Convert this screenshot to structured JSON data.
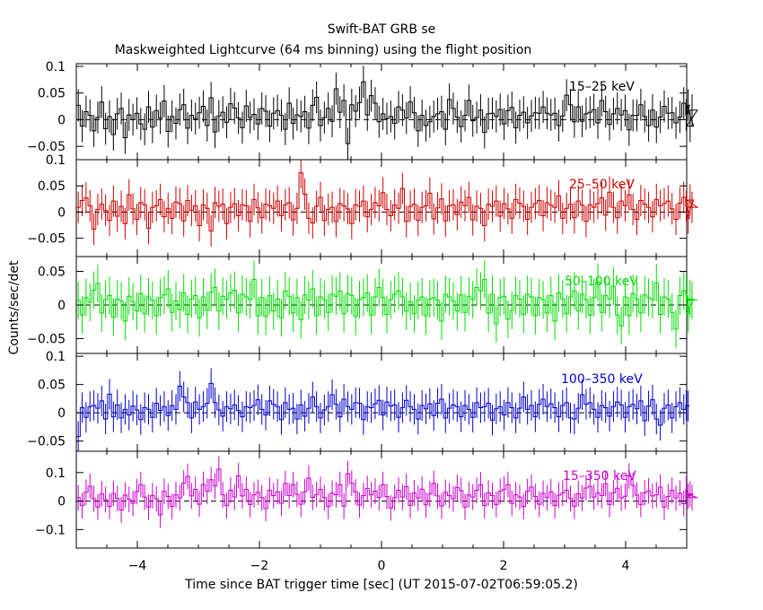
{
  "chart_data": {
    "type": "line",
    "title": "Swift-BAT GRB se",
    "subtitle": "Maskweighted Lightcurve (64 ms binning) using the flight position",
    "xlabel": "Time since BAT trigger time [sec] (UT 2015-07-02T06:59:05.2)",
    "ylabel": "Counts/sec/det",
    "xlim": [
      -5,
      5
    ],
    "xticks": [
      -4,
      -2,
      0,
      2,
      4
    ],
    "xtick_labels": [
      "−4",
      "−2",
      "0",
      "2",
      "4"
    ],
    "bin_width": 0.064,
    "panels": [
      {
        "label": "15–25 keV",
        "color": "#000000",
        "ylim": [
          -0.075,
          0.105
        ],
        "yticks": [
          -0.05,
          0,
          0.05,
          0.1
        ],
        "ytick_labels": [
          "−0.05",
          "0",
          "0.05",
          "0.1"
        ],
        "error": 0.03,
        "values": [
          0.027,
          -0.012,
          0.015,
          0.008,
          -0.021,
          0.004,
          0.033,
          -0.017,
          0.006,
          -0.028,
          0.011,
          0.021,
          -0.034,
          0.009,
          0.0,
          0.012,
          -0.008,
          -0.018,
          0.024,
          -0.014,
          0.017,
          0.003,
          0.035,
          -0.022,
          0.006,
          -0.007,
          0.019,
          0.028,
          -0.016,
          0.008,
          0.002,
          0.013,
          0.025,
          -0.011,
          0.041,
          -0.023,
          0.007,
          0.014,
          -0.005,
          0.03,
          0.022,
          0.003,
          -0.015,
          0.026,
          0.004,
          0.01,
          -0.008,
          0.021,
          0.016,
          -0.012,
          0.012,
          0.017,
          0.008,
          -0.018,
          0.031,
          -0.007,
          0.009,
          0.006,
          0.015,
          -0.016,
          0.027,
          0.042,
          -0.011,
          0.004,
          0.021,
          -0.003,
          0.058,
          0.014,
          0.036,
          -0.045,
          0.028,
          0.016,
          0.032,
          0.071,
          0.009,
          0.045,
          0.031,
          -0.004,
          0.011,
          0.002,
          0.006,
          -0.007,
          0.024,
          0.018,
          0.003,
          0.033,
          0.013,
          -0.021,
          0.008,
          -0.011,
          -0.004,
          0.006,
          0.011,
          0.015,
          -0.018,
          0.038,
          0.021,
          0.005,
          -0.013,
          0.008,
          0.036,
          -0.002,
          0.004,
          0.018,
          -0.024,
          0.011,
          0.012,
          0.006,
          0.019,
          -0.008,
          0.017,
          0.023,
          -0.015,
          0.008,
          0.014,
          -0.006,
          0.007,
          0.013,
          0.012,
          0.024,
          0.012,
          0.009,
          0.012,
          -0.011,
          0.007,
          0.046,
          0.028,
          -0.004,
          0.024,
          -0.003,
          0.011,
          0.014,
          0.019,
          -0.006,
          0.036,
          0.015,
          -0.009,
          0.011,
          0.021,
          0.009,
          0.017,
          -0.019,
          0.008,
          0.008,
          0.028,
          0.006,
          -0.011,
          0.018,
          -0.014,
          0.005,
          0.025,
          0.012,
          0.013,
          -0.006,
          0.005,
          0.031,
          0.009,
          0.027,
          -0.012,
          0.018
        ]
      },
      {
        "label": "25–50 keV",
        "color": "#cc0000",
        "ylim": [
          -0.085,
          0.1
        ],
        "yticks": [
          -0.05,
          0,
          0.05,
          0.1
        ],
        "ytick_labels": [
          "−0.05",
          "0",
          "0.05",
          "0.1"
        ],
        "error": 0.03,
        "values": [
          0.009,
          0.022,
          0.027,
          0.012,
          -0.033,
          0.005,
          0.015,
          0.003,
          -0.016,
          0.021,
          -0.008,
          0.011,
          -0.022,
          0.033,
          0.006,
          -0.014,
          0.018,
          0.014,
          -0.031,
          0.009,
          0.012,
          0.024,
          -0.009,
          0.007,
          -0.012,
          0.019,
          0.016,
          -0.017,
          0.022,
          0.003,
          0.012,
          -0.026,
          0.014,
          0.007,
          -0.036,
          0.018,
          0.011,
          0.015,
          -0.022,
          0.009,
          0.016,
          -0.007,
          0.014,
          0.012,
          -0.018,
          0.024,
          0.008,
          -0.011,
          0.015,
          0.012,
          0.007,
          0.021,
          -0.007,
          0.014,
          0.018,
          -0.015,
          0.007,
          0.075,
          0.034,
          -0.012,
          -0.021,
          0.011,
          0.028,
          -0.016,
          0.005,
          0.009,
          -0.018,
          0.016,
          0.012,
          0.006,
          -0.022,
          0.014,
          0.011,
          0.021,
          -0.009,
          0.005,
          0.018,
          0.012,
          0.037,
          0.005,
          -0.007,
          0.014,
          0.007,
          0.045,
          -0.018,
          0.011,
          0.015,
          -0.016,
          0.009,
          0.012,
          0.036,
          -0.013,
          0.008,
          0.025,
          -0.017,
          0.012,
          0.014,
          -0.005,
          0.019,
          0.012,
          0.028,
          -0.015,
          0.011,
          0.007,
          -0.026,
          0.015,
          0.011,
          0.021,
          -0.008,
          0.016,
          0.006,
          -0.012,
          0.024,
          0.017,
          0.011,
          -0.014,
          0.009,
          0.016,
          0.022,
          -0.007,
          0.018,
          0.013,
          0.009,
          0.031,
          -0.012,
          0.007,
          0.015,
          -0.011,
          0.021,
          0.013,
          -0.018,
          0.014,
          0.009,
          0.016,
          0.027,
          -0.006,
          0.038,
          0.009,
          -0.011,
          0.021,
          0.012,
          0.033,
          0.005,
          -0.014,
          0.022,
          0.015,
          0.009,
          -0.009,
          0.024,
          0.012,
          0.016,
          0.021,
          0.006,
          -0.014,
          0.017,
          0.028,
          0.011,
          -0.012,
          0.023,
          0.009
        ]
      },
      {
        "label": "50–100 keV",
        "color": "#00dd00",
        "ylim": [
          -0.072,
          0.072
        ],
        "yticks": [
          -0.05,
          0,
          0.05
        ],
        "ytick_labels": [
          "−0.05",
          "0",
          "0.05"
        ],
        "error": 0.028,
        "values": [
          0.007,
          -0.015,
          0.011,
          0.004,
          0.022,
          0.032,
          -0.012,
          0.008,
          0.014,
          -0.018,
          0.009,
          0.006,
          -0.024,
          0.013,
          0.005,
          -0.009,
          0.017,
          -0.013,
          0.012,
          0.007,
          -0.016,
          0.011,
          0.015,
          0.024,
          -0.011,
          0.006,
          -0.007,
          0.018,
          -0.014,
          0.009,
          0.014,
          -0.019,
          0.012,
          -0.008,
          0.019,
          0.026,
          -0.009,
          0.013,
          0.008,
          0.018,
          0.022,
          -0.012,
          0.016,
          0.012,
          0.008,
          0.038,
          -0.016,
          0.011,
          -0.017,
          0.014,
          -0.009,
          0.009,
          -0.019,
          0.021,
          0.013,
          -0.012,
          0.011,
          -0.022,
          0.015,
          0.007,
          0.024,
          -0.016,
          0.012,
          0.008,
          -0.011,
          0.016,
          0.013,
          0.021,
          -0.013,
          0.017,
          0.014,
          -0.017,
          0.008,
          0.011,
          0.018,
          -0.015,
          0.012,
          0.026,
          0.011,
          -0.014,
          0.008,
          0.016,
          0.021,
          0.012,
          -0.009,
          0.005,
          -0.013,
          0.007,
          0.012,
          -0.016,
          0.009,
          0.011,
          0.007,
          -0.024,
          0.016,
          0.012,
          0.006,
          -0.009,
          0.015,
          -0.011,
          0.013,
          0.008,
          0.026,
          0.021,
          0.038,
          -0.012,
          0.016,
          -0.028,
          0.011,
          0.013,
          -0.021,
          -0.008,
          0.014,
          0.009,
          -0.014,
          0.016,
          0.012,
          -0.016,
          0.011,
          0.008,
          -0.012,
          0.014,
          -0.024,
          0.018,
          0.009,
          -0.013,
          0.012,
          0.021,
          -0.009,
          0.016,
          0.008,
          -0.015,
          0.011,
          0.034,
          -0.011,
          0.014,
          0.009,
          0.028,
          -0.015,
          -0.031,
          0.012,
          -0.016,
          0.017,
          0.009,
          -0.012,
          0.015,
          0.011,
          0.008,
          0.033,
          -0.014,
          0.012,
          0.009,
          -0.011,
          -0.036,
          0.014,
          0.021,
          0.016,
          -0.013,
          0.009,
          0.007
        ]
      },
      {
        "label": "100–350 keV",
        "color": "#0000cc",
        "ylim": [
          -0.068,
          0.105
        ],
        "yticks": [
          -0.05,
          0,
          0.05,
          0.1
        ],
        "ytick_labels": [
          "−0.05",
          "0",
          "0.05",
          "0.1"
        ],
        "error": 0.027,
        "values": [
          -0.042,
          0.009,
          -0.008,
          0.011,
          0.013,
          0.008,
          0.021,
          -0.011,
          0.033,
          -0.007,
          0.014,
          -0.009,
          0.006,
          -0.004,
          0.012,
          0.005,
          -0.012,
          0.009,
          0.006,
          -0.008,
          0.017,
          0.004,
          0.011,
          -0.005,
          0.013,
          0.006,
          0.047,
          0.028,
          0.018,
          -0.009,
          0.019,
          0.006,
          0.011,
          0.017,
          0.052,
          0.018,
          0.005,
          -0.006,
          0.011,
          0.007,
          0.014,
          0.004,
          -0.007,
          0.011,
          0.009,
          0.013,
          0.023,
          0.006,
          -0.004,
          0.021,
          0.015,
          0.011,
          -0.012,
          0.018,
          0.006,
          0.008,
          -0.011,
          0.014,
          -0.006,
          0.008,
          0.028,
          0.011,
          -0.009,
          0.005,
          0.011,
          0.032,
          0.015,
          -0.007,
          0.024,
          0.011,
          0.006,
          0.018,
          0.017,
          -0.012,
          0.011,
          0.009,
          0.016,
          0.022,
          -0.004,
          0.019,
          0.012,
          0.014,
          -0.008,
          0.009,
          0.022,
          0.011,
          0.006,
          -0.011,
          0.013,
          0.007,
          0.016,
          -0.005,
          0.017,
          0.024,
          -0.009,
          0.008,
          0.014,
          0.011,
          -0.007,
          0.013,
          0.006,
          -0.008,
          0.018,
          0.009,
          0.011,
          0.017,
          -0.013,
          0.007,
          0.011,
          -0.004,
          0.018,
          0.009,
          -0.009,
          0.008,
          0.028,
          0.006,
          0.013,
          -0.007,
          0.015,
          0.024,
          0.011,
          0.016,
          0.009,
          -0.007,
          0.013,
          0.018,
          -0.009,
          -0.011,
          0.008,
          0.032,
          0.015,
          0.018,
          0.006,
          -0.008,
          0.013,
          0.009,
          -0.006,
          0.011,
          0.019,
          0.014,
          -0.008,
          0.011,
          0.015,
          0.007,
          0.021,
          -0.014,
          0.012,
          0.023,
          -0.011,
          -0.022,
          0.008,
          0.014,
          -0.009,
          0.011,
          0.018,
          0.006,
          0.013,
          0.012
        ]
      },
      {
        "label": "15–350 keV",
        "color": "#cc00cc",
        "ylim": [
          -0.165,
          0.175
        ],
        "yticks": [
          -0.1,
          0,
          0.1
        ],
        "ytick_labels": [
          "−0.1",
          "0",
          "0.1"
        ],
        "error": 0.045,
        "values": [
          0.012,
          -0.016,
          0.031,
          0.052,
          0.008,
          -0.021,
          0.026,
          0.005,
          -0.019,
          0.027,
          0.009,
          -0.031,
          0.021,
          0.006,
          -0.008,
          0.033,
          0.058,
          0.014,
          -0.021,
          0.019,
          0.008,
          -0.048,
          0.034,
          0.016,
          -0.019,
          0.022,
          0.011,
          0.063,
          0.087,
          0.018,
          0.041,
          -0.011,
          0.058,
          0.034,
          0.075,
          0.053,
          0.112,
          0.022,
          -0.016,
          0.038,
          0.014,
          0.089,
          0.018,
          0.041,
          -0.012,
          0.022,
          0.031,
          0.012,
          -0.026,
          0.038,
          0.019,
          0.033,
          -0.008,
          0.062,
          0.019,
          0.058,
          0.024,
          -0.011,
          0.033,
          0.081,
          0.013,
          0.023,
          0.041,
          0.012,
          -0.019,
          0.028,
          0.022,
          0.058,
          -0.018,
          0.096,
          0.063,
          0.032,
          -0.014,
          0.019,
          0.044,
          0.022,
          0.035,
          0.012,
          0.058,
          0.016,
          -0.024,
          0.012,
          0.038,
          0.014,
          0.051,
          -0.015,
          0.029,
          0.011,
          0.042,
          -0.013,
          0.025,
          0.062,
          0.018,
          -0.017,
          0.031,
          0.019,
          0.008,
          0.048,
          0.037,
          -0.021,
          0.022,
          0.014,
          0.038,
          0.057,
          -0.016,
          0.029,
          0.019,
          -0.012,
          0.034,
          0.041,
          0.058,
          -0.008,
          0.022,
          0.014,
          -0.019,
          0.034,
          0.049,
          0.016,
          -0.011,
          0.027,
          0.012,
          0.033,
          -0.016,
          0.021,
          0.028,
          0.038,
          0.009,
          -0.018,
          0.026,
          0.011,
          0.046,
          0.052,
          0.014,
          0.029,
          0.019,
          0.061,
          -0.012,
          0.029,
          0.045,
          0.011,
          0.017,
          0.088,
          0.055,
          0.021,
          -0.012,
          0.029,
          0.036,
          0.018,
          0.022,
          0.049,
          -0.021,
          0.016,
          0.038,
          0.011,
          0.028,
          -0.009,
          0.042,
          0.017,
          0.025,
          0.012
        ]
      }
    ]
  }
}
